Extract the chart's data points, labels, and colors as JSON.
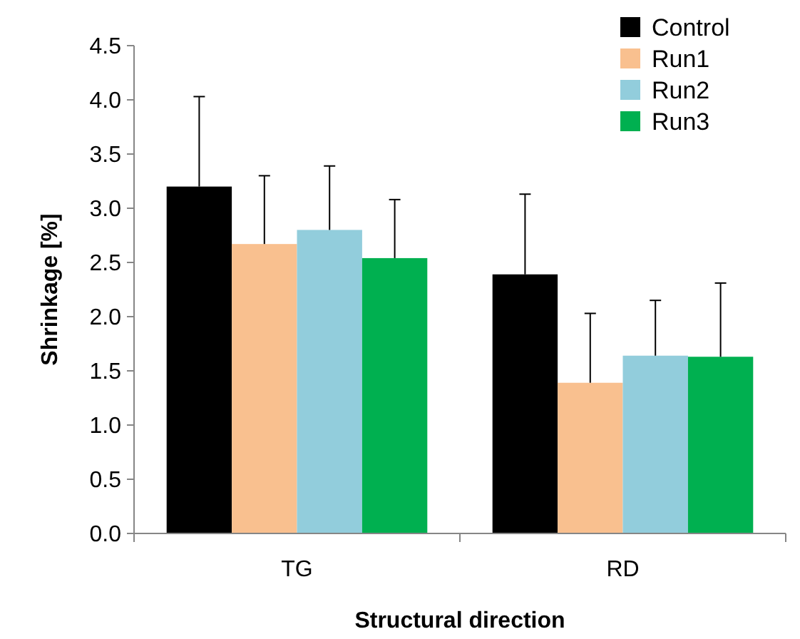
{
  "chart_data": {
    "type": "bar",
    "xlabel": "Structural direction",
    "ylabel": "Shrinkage [%]",
    "categories": [
      "TG",
      "RD"
    ],
    "series": [
      {
        "name": "Control",
        "color": "#000000",
        "values": [
          3.2,
          2.39
        ],
        "errors": [
          [
            3.2,
            4.03
          ],
          [
            2.39,
            3.13
          ]
        ]
      },
      {
        "name": "Run1",
        "color": "#f9c08f",
        "values": [
          2.67,
          1.39
        ],
        "errors": [
          [
            2.67,
            3.3
          ],
          [
            1.39,
            2.03
          ]
        ]
      },
      {
        "name": "Run2",
        "color": "#92cddc",
        "values": [
          2.8,
          1.64
        ],
        "errors": [
          [
            2.8,
            3.39
          ],
          [
            1.64,
            2.15
          ]
        ]
      },
      {
        "name": "Run3",
        "color": "#00b050",
        "values": [
          2.54,
          1.63
        ],
        "errors": [
          [
            2.54,
            3.08
          ],
          [
            1.63,
            2.31
          ]
        ]
      }
    ],
    "ylim": [
      0,
      4.5
    ],
    "yticks": [
      {
        "value": 0,
        "label": "0.0"
      },
      {
        "value": 0.5,
        "label": "0.5"
      },
      {
        "value": 1,
        "label": "1.0"
      },
      {
        "value": 1.5,
        "label": "1.5"
      },
      {
        "value": 2,
        "label": "2.0"
      },
      {
        "value": 2.5,
        "label": "2.5"
      },
      {
        "value": 3,
        "label": "3.0"
      },
      {
        "value": 3.5,
        "label": "3.5"
      },
      {
        "value": 4,
        "label": "4.0"
      },
      {
        "value": 4.5,
        "label": "4.5"
      }
    ],
    "grid": false,
    "legend": "top right"
  }
}
